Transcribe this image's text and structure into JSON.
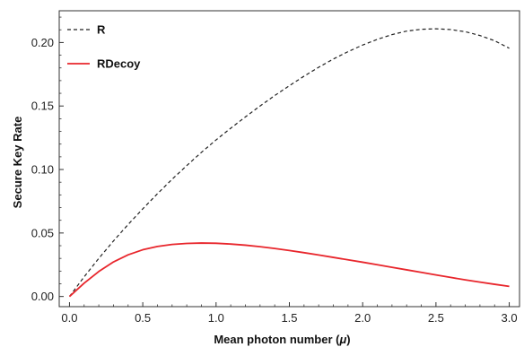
{
  "chart_data": {
    "type": "line",
    "title": "",
    "xlabel": "Mean photon number (μ)",
    "xlabel_parts": {
      "text": "Mean photon number (",
      "symbol": "μ",
      "close": ")"
    },
    "ylabel": "Secure Key Rate",
    "xlim": [
      -0.07,
      3.07
    ],
    "ylim": [
      -0.008,
      0.225
    ],
    "x_ticks": [
      0.0,
      0.5,
      1.0,
      1.5,
      2.0,
      2.5,
      3.0
    ],
    "x_tick_labels": [
      "0.0",
      "0.5",
      "1.0",
      "1.5",
      "2.0",
      "2.5",
      "3.0"
    ],
    "y_ticks": [
      0.0,
      0.05,
      0.1,
      0.15,
      0.2
    ],
    "y_tick_labels": [
      "0.00",
      "0.05",
      "0.10",
      "0.15",
      "0.20"
    ],
    "grid": false,
    "legend_position": "top-left",
    "series": [
      {
        "name": "R",
        "color": "#222222",
        "style": "dashed",
        "x": [
          0.0,
          0.1,
          0.2,
          0.3,
          0.4,
          0.5,
          0.6,
          0.7,
          0.8,
          0.9,
          1.0,
          1.1,
          1.2,
          1.3,
          1.4,
          1.5,
          1.6,
          1.7,
          1.8,
          1.9,
          2.0,
          2.1,
          2.2,
          2.3,
          2.4,
          2.5,
          2.6,
          2.7,
          2.8,
          2.9,
          3.0
        ],
        "y": [
          0.0,
          0.0155,
          0.03,
          0.0437,
          0.0567,
          0.069,
          0.0809,
          0.0923,
          0.1031,
          0.1135,
          0.1233,
          0.1325,
          0.1414,
          0.15,
          0.1582,
          0.166,
          0.1735,
          0.1805,
          0.187,
          0.1928,
          0.198,
          0.2025,
          0.2062,
          0.209,
          0.2104,
          0.2108,
          0.2102,
          0.2085,
          0.2055,
          0.2014,
          0.1955
        ]
      },
      {
        "name": "RDecoy",
        "color": "#e8262c",
        "style": "solid",
        "x": [
          0.0,
          0.1,
          0.2,
          0.3,
          0.4,
          0.5,
          0.6,
          0.7,
          0.8,
          0.9,
          1.0,
          1.1,
          1.2,
          1.3,
          1.4,
          1.5,
          1.6,
          1.7,
          1.8,
          1.9,
          2.0,
          2.1,
          2.2,
          2.3,
          2.4,
          2.5,
          2.6,
          2.7,
          2.8,
          2.9,
          3.0
        ],
        "y": [
          0.0,
          0.0105,
          0.0197,
          0.0272,
          0.0328,
          0.0368,
          0.0394,
          0.041,
          0.0418,
          0.0421,
          0.0419,
          0.0413,
          0.0404,
          0.0392,
          0.0378,
          0.0362,
          0.0345,
          0.0327,
          0.0308,
          0.0289,
          0.027,
          0.025,
          0.023,
          0.021,
          0.019,
          0.017,
          0.015,
          0.0131,
          0.0113,
          0.0096,
          0.008
        ]
      }
    ]
  }
}
